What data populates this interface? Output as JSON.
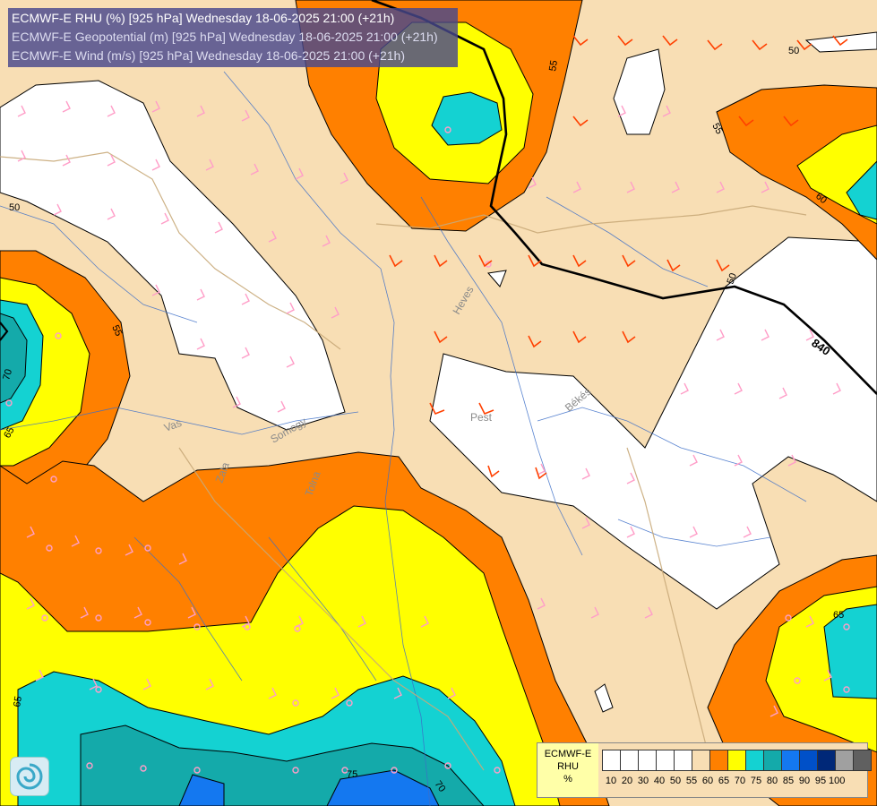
{
  "header": {
    "line1": "ECMWF-E RHU (%) [925 hPa] Wednesday 18-06-2025 21:00 (+21h)",
    "line2": "ECMWF-E Geopotential (m) [925 hPa] Wednesday 18-06-2025 21:00 (+21h)",
    "line3": "ECMWF-E Wind (m/s) [925 hPa] Wednesday 18-06-2025 21:00 (+21h)"
  },
  "map": {
    "region_labels": {
      "heves": "Heves",
      "pest": "Pest",
      "bekes": "Békés",
      "vas": "Vas",
      "zala": "Zala",
      "somogy": "Somogy",
      "tolna": "Tolna"
    },
    "contour_labels": [
      "55",
      "50",
      "55",
      "60",
      "50",
      "55",
      "70",
      "65",
      "65",
      "65",
      "75",
      "70",
      "840",
      "50"
    ],
    "colors": {
      "rhu_0_50": "#ffffff",
      "rhu_50_55": "#f8deb4",
      "rhu_55_60": "#ff8000",
      "rhu_60_65": "#ffff00",
      "rhu_65_70": "#14d2d2",
      "rhu_70_75": "#14aaaa",
      "rhu_75_80": "#1478f0",
      "wind_pink": "#ff9ec8",
      "wind_orange": "#ff4000",
      "geopotential": "#000000"
    }
  },
  "legend": {
    "title": "ECMWF-E",
    "variable": "RHU",
    "unit": "%",
    "ticks": [
      "10",
      "20",
      "30",
      "40",
      "50",
      "55",
      "60",
      "65",
      "70",
      "75",
      "80",
      "85",
      "90",
      "95",
      "100"
    ],
    "colors": [
      "#ffffff",
      "#ffffff",
      "#ffffff",
      "#ffffff",
      "#ffffff",
      "#f8deb4",
      "#ff8000",
      "#ffff00",
      "#14d2d2",
      "#14aaaa",
      "#1478f0",
      "#0050c8",
      "#002878",
      "#a0a0a0",
      "#606060"
    ]
  },
  "logo": {
    "icon": "ecmwf-swirl-icon"
  }
}
